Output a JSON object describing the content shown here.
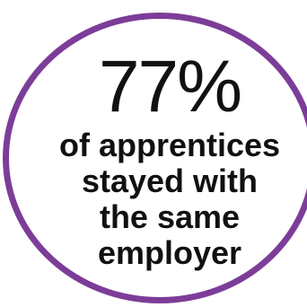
{
  "stat": {
    "value": "77%",
    "caption_lines": [
      "of apprentices",
      "stayed with",
      "the same",
      "employer"
    ]
  },
  "colors": {
    "ring": "#7c3d99",
    "text": "#111111",
    "background": "#ffffff"
  }
}
